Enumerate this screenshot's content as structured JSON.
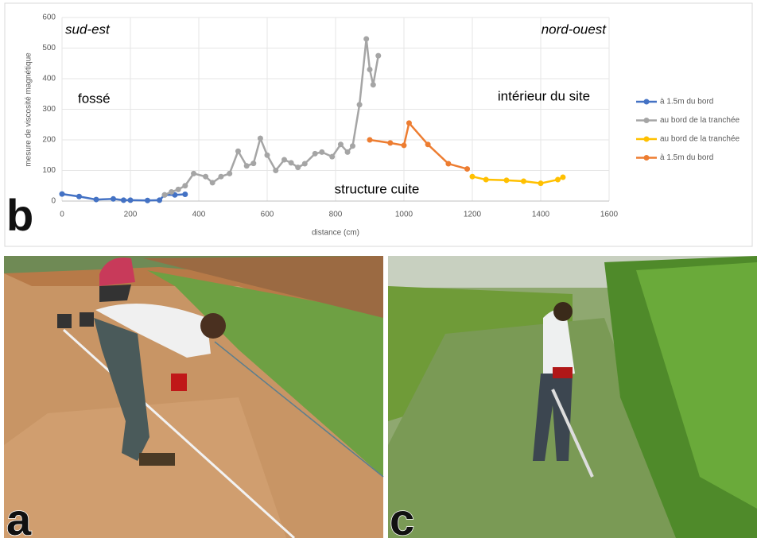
{
  "chart_data": {
    "type": "line",
    "panel_label": "b",
    "xlabel": "distance (cm)",
    "ylabel": "mesure de viscosité magnétique",
    "annotations": [
      "sud-est",
      "nord-ouest",
      "fossé",
      "intérieur du site",
      "structure cuite"
    ],
    "xlim": [
      0,
      1600
    ],
    "xticks": [
      0,
      200,
      400,
      600,
      800,
      1000,
      1200,
      1400,
      1600
    ],
    "ylim": [
      0,
      600
    ],
    "yticks": [
      0,
      100,
      200,
      300,
      400,
      500,
      600
    ],
    "grid": true,
    "legend": "right",
    "series": [
      {
        "name": "à 1.5m du bord",
        "color": "#4472c4",
        "x": [
          0,
          50,
          100,
          150,
          180,
          200,
          250,
          285,
          300,
          330,
          360
        ],
        "values": [
          23,
          15,
          5,
          7,
          3,
          3,
          2,
          3,
          20,
          20,
          22
        ]
      },
      {
        "name": "au bord de la tranchée",
        "color": "#a5a5a5",
        "x": [
          300,
          320,
          340,
          360,
          385,
          420,
          440,
          465,
          490,
          515,
          540,
          560,
          580,
          600,
          625,
          650,
          670,
          690,
          710,
          740,
          760,
          790,
          815,
          835,
          850,
          870,
          890,
          900,
          910,
          925
        ],
        "values": [
          20,
          30,
          38,
          50,
          90,
          80,
          60,
          80,
          90,
          163,
          115,
          123,
          205,
          150,
          100,
          135,
          125,
          110,
          122,
          155,
          160,
          145,
          185,
          160,
          180,
          315,
          530,
          430,
          380,
          475
        ]
      },
      {
        "name": "au bord de la tranchée",
        "color": "#ffc000",
        "x": [
          1200,
          1240,
          1300,
          1350,
          1400,
          1450,
          1465
        ],
        "values": [
          80,
          70,
          68,
          65,
          58,
          70,
          78
        ]
      },
      {
        "name": "à 1.5m du bord",
        "color": "#ed7d31",
        "x": [
          900,
          960,
          1000,
          1015,
          1070,
          1130,
          1185
        ],
        "values": [
          200,
          190,
          182,
          255,
          185,
          122,
          105
        ]
      }
    ]
  },
  "photo_labels": [
    "a",
    "c"
  ]
}
